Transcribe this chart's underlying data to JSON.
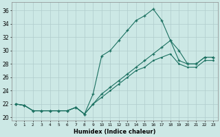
{
  "xlabel": "Humidex (Indice chaleur)",
  "background_color": "#cce8e5",
  "grid_color": "#b0cccc",
  "line_color": "#1a7060",
  "xlim": [
    -0.5,
    23.5
  ],
  "ylim": [
    19.5,
    37.2
  ],
  "ytick_values": [
    20,
    22,
    24,
    26,
    28,
    30,
    32,
    34,
    36
  ],
  "line1_y": [
    22.0,
    21.8,
    21.0,
    21.0,
    21.0,
    21.0,
    21.0,
    21.5,
    20.5,
    23.5,
    29.2,
    30.0,
    31.5,
    33.0,
    34.5,
    35.2,
    36.2,
    34.5,
    31.5,
    30.0,
    28.0,
    28.0,
    29.0,
    29.0
  ],
  "line2_y": [
    22.0,
    21.8,
    21.0,
    21.0,
    21.0,
    21.0,
    21.0,
    21.5,
    20.5,
    22.0,
    23.5,
    24.5,
    25.5,
    26.5,
    27.5,
    28.5,
    29.5,
    30.5,
    31.5,
    28.5,
    28.0,
    28.0,
    29.0,
    29.0
  ],
  "line3_y": [
    22.0,
    21.8,
    21.0,
    21.0,
    21.0,
    21.0,
    21.0,
    21.5,
    20.5,
    22.0,
    23.0,
    24.0,
    25.0,
    26.0,
    27.0,
    27.5,
    28.5,
    29.0,
    29.5,
    28.0,
    27.5,
    27.5,
    28.5,
    28.5
  ]
}
